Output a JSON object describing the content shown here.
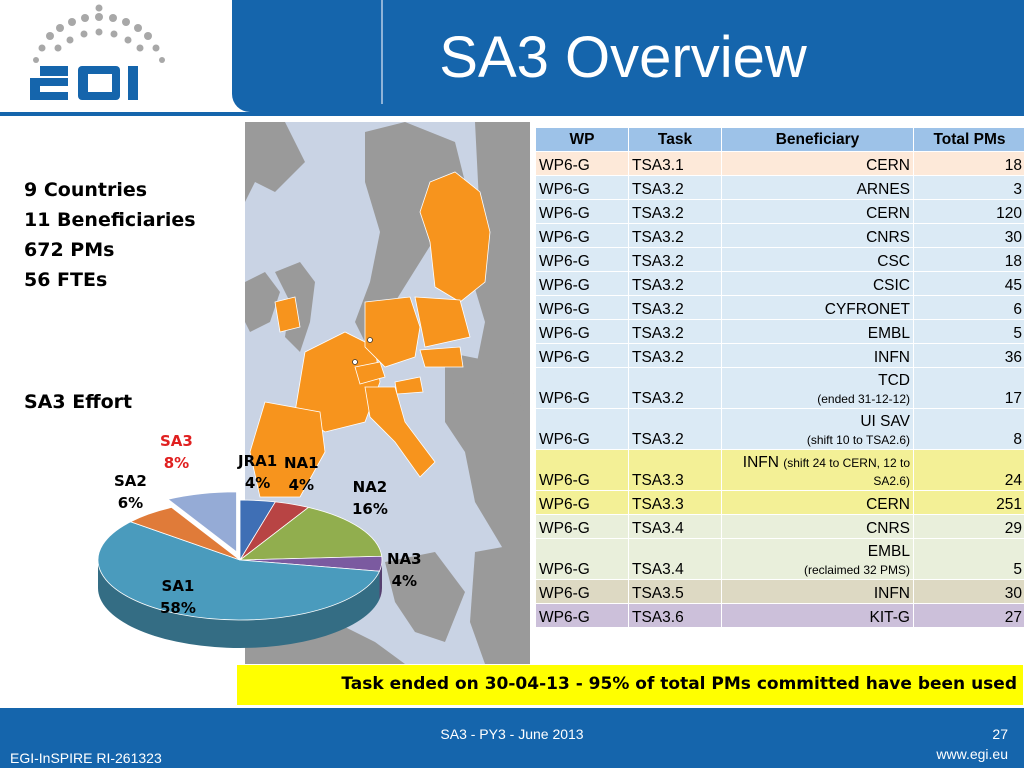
{
  "header": {
    "title": "SA3 Overview",
    "logo_text": "egi"
  },
  "stats": [
    "9 Countries",
    "11 Beneficiaries",
    "672 PMs",
    "56 FTEs"
  ],
  "effort_title": "SA3 Effort",
  "pie": [
    {
      "name": "SA1",
      "pct": "58%",
      "value": 58,
      "color": "#4a9bbd"
    },
    {
      "name": "SA2",
      "pct": "6%",
      "value": 6,
      "color": "#e07b39"
    },
    {
      "name": "SA3",
      "pct": "8%",
      "value": 8,
      "color": "#95abd6",
      "label_color": "#e02020"
    },
    {
      "name": "JRA1",
      "pct": "4%",
      "value": 4,
      "color": "#3f6fb5"
    },
    {
      "name": "NA1",
      "pct": "4%",
      "value": 4,
      "color": "#b84444"
    },
    {
      "name": "NA2",
      "pct": "16%",
      "value": 16,
      "color": "#91ae4e"
    },
    {
      "name": "NA3",
      "pct": "4%",
      "value": 4,
      "color": "#7b5aa0"
    }
  ],
  "table": {
    "headers": [
      "WP",
      "Task",
      "Beneficiary",
      "Total PMs"
    ],
    "rows": [
      {
        "wp": "WP6-G",
        "task": "TSA3.1",
        "beneficiary": "CERN",
        "note": "",
        "pms": "18",
        "group": "g1"
      },
      {
        "wp": "WP6-G",
        "task": "TSA3.2",
        "beneficiary": "ARNES",
        "note": "",
        "pms": "3",
        "group": "g2"
      },
      {
        "wp": "WP6-G",
        "task": "TSA3.2",
        "beneficiary": "CERN",
        "note": "",
        "pms": "120",
        "group": "g2"
      },
      {
        "wp": "WP6-G",
        "task": "TSA3.2",
        "beneficiary": "CNRS",
        "note": "",
        "pms": "30",
        "group": "g2"
      },
      {
        "wp": "WP6-G",
        "task": "TSA3.2",
        "beneficiary": "CSC",
        "note": "",
        "pms": "18",
        "group": "g2"
      },
      {
        "wp": "WP6-G",
        "task": "TSA3.2",
        "beneficiary": "CSIC",
        "note": "",
        "pms": "45",
        "group": "g2"
      },
      {
        "wp": "WP6-G",
        "task": "TSA3.2",
        "beneficiary": "CYFRONET",
        "note": "",
        "pms": "6",
        "group": "g2"
      },
      {
        "wp": "WP6-G",
        "task": "TSA3.2",
        "beneficiary": "EMBL",
        "note": "",
        "pms": "5",
        "group": "g2"
      },
      {
        "wp": "WP6-G",
        "task": "TSA3.2",
        "beneficiary": "INFN",
        "note": "",
        "pms": "36",
        "group": "g2"
      },
      {
        "wp": "WP6-G",
        "task": "TSA3.2",
        "beneficiary": "TCD",
        "note": "(ended 31-12-12)",
        "pms": "17",
        "group": "g2",
        "tall": true
      },
      {
        "wp": "WP6-G",
        "task": "TSA3.2",
        "beneficiary": "UI SAV",
        "note": "(shift 10 to TSA2.6)",
        "pms": "8",
        "group": "g2",
        "tall": true
      },
      {
        "wp": "WP6-G",
        "task": "TSA3.3",
        "beneficiary": "INFN",
        "note": "(shift 24 to CERN, 12 to SA2.6)",
        "pms": "24",
        "group": "g3",
        "tall": true,
        "inline": true
      },
      {
        "wp": "WP6-G",
        "task": "TSA3.3",
        "beneficiary": "CERN",
        "note": "",
        "pms": "251",
        "group": "g3"
      },
      {
        "wp": "WP6-G",
        "task": "TSA3.4",
        "beneficiary": "CNRS",
        "note": "",
        "pms": "29",
        "group": "g4"
      },
      {
        "wp": "WP6-G",
        "task": "TSA3.4",
        "beneficiary": "EMBL",
        "note": "(reclaimed 32 PMS)",
        "pms": "5",
        "group": "g4",
        "tall": true
      },
      {
        "wp": "WP6-G",
        "task": "TSA3.5",
        "beneficiary": "INFN",
        "note": "",
        "pms": "30",
        "group": "g5"
      },
      {
        "wp": "WP6-G",
        "task": "TSA3.6",
        "beneficiary": "KIT-G",
        "note": "",
        "pms": "27",
        "group": "g6"
      }
    ]
  },
  "banner": "Task ended on 30-04-13  -  95% of total PMs committed have been used",
  "footer": {
    "center": "SA3 - PY3 - June 2013",
    "page": "27",
    "left": "EGI-InSPIRE RI-261323",
    "right": "www.egi.eu"
  }
}
